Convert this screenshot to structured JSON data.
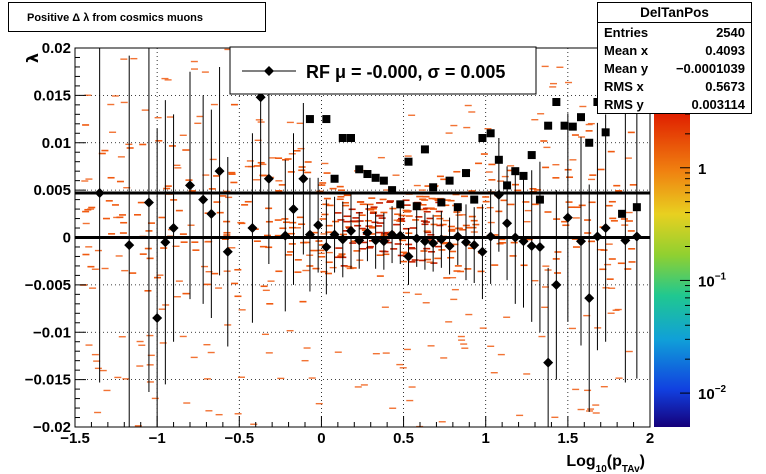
{
  "title": "Positive Δ λ from cosmics muons",
  "stats": {
    "name": "DelTanPos",
    "rows": [
      {
        "key": "Entries",
        "value": "2540"
      },
      {
        "key": "Mean x",
        "value": "0.4093"
      },
      {
        "key": "Mean y",
        "value": "−0.0001039"
      },
      {
        "key": "RMS x",
        "value": "0.5673"
      },
      {
        "key": "RMS y",
        "value": "0.003114"
      }
    ]
  },
  "legend": {
    "text": "RF μ = -0.000, σ =   0.005"
  },
  "colors": {
    "frame": "#000000",
    "hist_low": "#f05a10",
    "hist_high": "#c62000",
    "marker": "#000000"
  },
  "chart_data": {
    "type": "scatter",
    "xlabel": "Log10(pTAv)",
    "ylabel": "λ",
    "xlim": [
      -1.5,
      2
    ],
    "ylim": [
      -0.02,
      0.02
    ],
    "x_ticks": [
      {
        "value": -1.5,
        "label": "−1.5"
      },
      {
        "value": -1,
        "label": "−1"
      },
      {
        "value": -0.5,
        "label": "−0.5"
      },
      {
        "value": 0,
        "label": "0"
      },
      {
        "value": 0.5,
        "label": "0.5"
      },
      {
        "value": 1,
        "label": "1"
      },
      {
        "value": 1.5,
        "label": "1.5"
      },
      {
        "value": 2,
        "label": "2"
      }
    ],
    "y_ticks": [
      {
        "value": 0.02,
        "label": "0.02"
      },
      {
        "value": 0.015,
        "label": "0.015"
      },
      {
        "value": 0.01,
        "label": "0.01"
      },
      {
        "value": 0.005,
        "label": "0.005"
      },
      {
        "value": 0,
        "label": "0"
      },
      {
        "value": -0.005,
        "label": "−0.005"
      },
      {
        "value": -0.01,
        "label": "−0.01"
      },
      {
        "value": -0.015,
        "label": "−0.015"
      },
      {
        "value": -0.02,
        "label": "−0.02"
      }
    ],
    "grid": true,
    "horizontal_lines": [
      0.0047,
      0.0
    ],
    "colorbar": {
      "scale": "log",
      "range": [
        0.005,
        3
      ],
      "ticks": [
        {
          "value": 1,
          "label": "1"
        },
        {
          "value": 0.1,
          "label": "10^-1"
        },
        {
          "value": 0.01,
          "label": "10^-2"
        }
      ]
    },
    "mean_series": {
      "marker": "diamond",
      "points": [
        {
          "x": -1.35,
          "y": 0.0047,
          "err": 0.02
        },
        {
          "x": -1.17,
          "y": -0.0008,
          "err": 0.02
        },
        {
          "x": -1.05,
          "y": 0.0037,
          "err": 0.02
        },
        {
          "x": -1.0,
          "y": -0.0085,
          "err": 0.02
        },
        {
          "x": -0.95,
          "y": -0.0005,
          "err": 0.015
        },
        {
          "x": -0.9,
          "y": 0.001,
          "err": 0.012
        },
        {
          "x": -0.8,
          "y": 0.0055,
          "err": 0.012
        },
        {
          "x": -0.72,
          "y": 0.004,
          "err": 0.011
        },
        {
          "x": -0.67,
          "y": 0.0025,
          "err": 0.011
        },
        {
          "x": -0.62,
          "y": 0.007,
          "err": 0.011
        },
        {
          "x": -0.57,
          "y": -0.0015,
          "err": 0.01
        },
        {
          "x": -0.42,
          "y": 0.001,
          "err": 0.01
        },
        {
          "x": -0.37,
          "y": 0.0148,
          "err": 0.01
        },
        {
          "x": -0.32,
          "y": 0.0062,
          "err": 0.009
        },
        {
          "x": -0.22,
          "y": 0.0002,
          "err": 0.008
        },
        {
          "x": -0.17,
          "y": 0.003,
          "err": 0.008
        },
        {
          "x": -0.11,
          "y": 0.0062,
          "err": 0.008
        },
        {
          "x": -0.07,
          "y": 0.0003,
          "err": 0.006
        },
        {
          "x": -0.02,
          "y": 0.0013,
          "err": 0.005
        },
        {
          "x": 0.03,
          "y": -0.001,
          "err": 0.005
        },
        {
          "x": 0.08,
          "y": 0.0003,
          "err": 0.004
        },
        {
          "x": 0.13,
          "y": -0.0002,
          "err": 0.004
        },
        {
          "x": 0.18,
          "y": 0.0007,
          "err": 0.004
        },
        {
          "x": 0.23,
          "y": -0.0003,
          "err": 0.003
        },
        {
          "x": 0.28,
          "y": 0.0005,
          "err": 0.003
        },
        {
          "x": 0.33,
          "y": -0.0003,
          "err": 0.003
        },
        {
          "x": 0.38,
          "y": -0.0004,
          "err": 0.003
        },
        {
          "x": 0.43,
          "y": 0.0003,
          "err": 0.003
        },
        {
          "x": 0.48,
          "y": 0.0002,
          "err": 0.003
        },
        {
          "x": 0.53,
          "y": -0.002,
          "err": 0.003
        },
        {
          "x": 0.58,
          "y": -0.0001,
          "err": 0.003
        },
        {
          "x": 0.63,
          "y": -0.0004,
          "err": 0.003
        },
        {
          "x": 0.68,
          "y": -0.0006,
          "err": 0.003
        },
        {
          "x": 0.73,
          "y": -0.0002,
          "err": 0.003
        },
        {
          "x": 0.78,
          "y": -0.0009,
          "err": 0.003
        },
        {
          "x": 0.83,
          "y": 0.0001,
          "err": 0.003
        },
        {
          "x": 0.88,
          "y": -0.0005,
          "err": 0.004
        },
        {
          "x": 0.93,
          "y": -0.0008,
          "err": 0.004
        },
        {
          "x": 0.98,
          "y": -0.0015,
          "err": 0.005
        },
        {
          "x": 1.03,
          "y": 0.0001,
          "err": 0.005
        },
        {
          "x": 1.08,
          "y": 0.0045,
          "err": 0.006
        },
        {
          "x": 1.13,
          "y": 0.0015,
          "err": 0.006
        },
        {
          "x": 1.18,
          "y": 0.0,
          "err": 0.007
        },
        {
          "x": 1.23,
          "y": -0.0004,
          "err": 0.007
        },
        {
          "x": 1.28,
          "y": -0.0009,
          "err": 0.008
        },
        {
          "x": 1.33,
          "y": -0.001,
          "err": 0.009
        },
        {
          "x": 1.38,
          "y": -0.0132,
          "err": 0.01
        },
        {
          "x": 1.43,
          "y": -0.005,
          "err": 0.01
        },
        {
          "x": 1.5,
          "y": 0.0021,
          "err": 0.011
        },
        {
          "x": 1.58,
          "y": -0.0004,
          "err": 0.011
        },
        {
          "x": 1.63,
          "y": -0.0064,
          "err": 0.012
        },
        {
          "x": 1.68,
          "y": 0.0001,
          "err": 0.012
        },
        {
          "x": 1.73,
          "y": 0.001,
          "err": 0.012
        },
        {
          "x": 1.85,
          "y": -0.0003,
          "err": 0.015
        },
        {
          "x": 1.92,
          "y": 0.0001,
          "err": 0.015
        }
      ]
    },
    "rms_series": {
      "marker": "square",
      "points": [
        {
          "x": -0.07,
          "y": 0.0125
        },
        {
          "x": 0.03,
          "y": 0.0125
        },
        {
          "x": 0.08,
          "y": 0.0062
        },
        {
          "x": 0.13,
          "y": 0.0105
        },
        {
          "x": 0.18,
          "y": 0.0105
        },
        {
          "x": 0.23,
          "y": 0.0072
        },
        {
          "x": 0.28,
          "y": 0.0067
        },
        {
          "x": 0.33,
          "y": 0.0063
        },
        {
          "x": 0.38,
          "y": 0.006
        },
        {
          "x": 0.43,
          "y": 0.005
        },
        {
          "x": 0.48,
          "y": 0.0035
        },
        {
          "x": 0.53,
          "y": 0.008
        },
        {
          "x": 0.58,
          "y": 0.0033
        },
        {
          "x": 0.63,
          "y": 0.0093
        },
        {
          "x": 0.68,
          "y": 0.0053
        },
        {
          "x": 0.73,
          "y": 0.0037
        },
        {
          "x": 0.78,
          "y": 0.006
        },
        {
          "x": 0.83,
          "y": 0.0032
        },
        {
          "x": 0.88,
          "y": 0.0068
        },
        {
          "x": 0.93,
          "y": 0.004
        },
        {
          "x": 0.98,
          "y": 0.0105
        },
        {
          "x": 1.03,
          "y": 0.011
        },
        {
          "x": 1.08,
          "y": 0.0082
        },
        {
          "x": 1.13,
          "y": 0.0055
        },
        {
          "x": 1.18,
          "y": 0.007
        },
        {
          "x": 1.23,
          "y": 0.0065
        },
        {
          "x": 1.28,
          "y": 0.0087
        },
        {
          "x": 1.33,
          "y": 0.004
        },
        {
          "x": 1.38,
          "y": 0.0118
        },
        {
          "x": 1.43,
          "y": 0.0143
        },
        {
          "x": 1.48,
          "y": 0.0118
        },
        {
          "x": 1.53,
          "y": 0.0117
        },
        {
          "x": 1.58,
          "y": 0.0127
        },
        {
          "x": 1.63,
          "y": 0.01
        },
        {
          "x": 1.68,
          "y": 0.0143
        },
        {
          "x": 1.73,
          "y": 0.0111
        },
        {
          "x": 1.78,
          "y": 0.0147
        },
        {
          "x": 1.83,
          "y": 0.0025
        },
        {
          "x": 1.92,
          "y": 0.0032
        }
      ]
    }
  }
}
